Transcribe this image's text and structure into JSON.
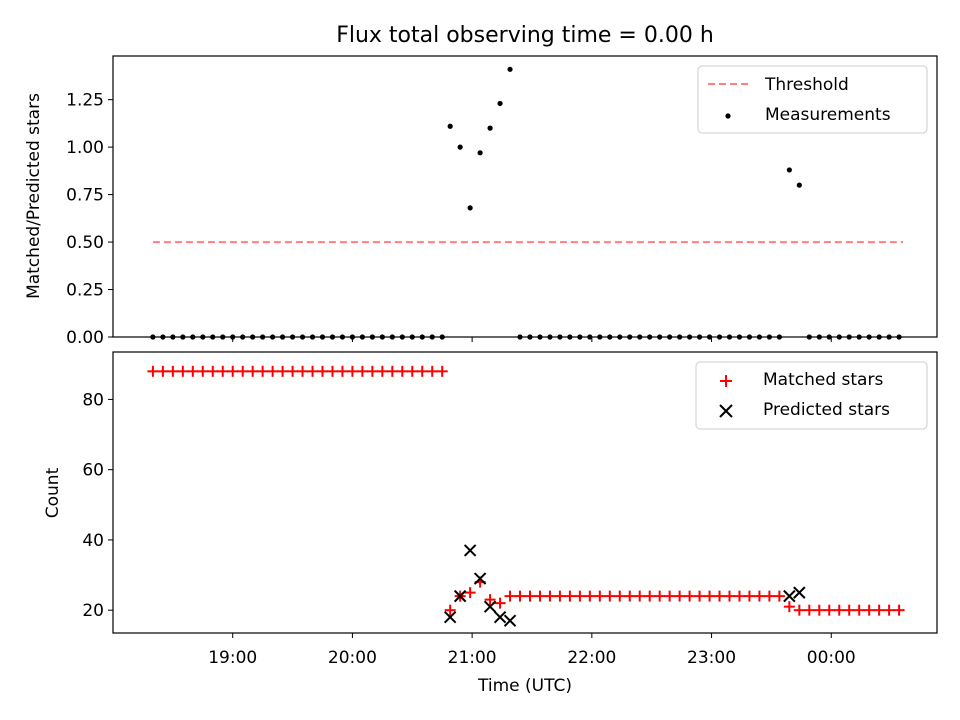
{
  "chart_data": [
    {
      "type": "scatter",
      "title": "Flux total observing time = 0.00 h",
      "xlabel": "",
      "ylabel": "Matched/Predicted stars",
      "ylim": [
        0,
        1.48
      ],
      "yticks": [
        "0.00",
        "0.25",
        "0.50",
        "0.75",
        "1.00",
        "1.25"
      ],
      "ytick_values": [
        0,
        0.25,
        0.5,
        0.75,
        1.0,
        1.25
      ],
      "legend_position": "top-right",
      "legend": [
        "Threshold",
        "Measurements"
      ],
      "threshold": {
        "name": "Threshold",
        "value": 0.5,
        "x_start": "18:20",
        "x_end": "00:36",
        "color": "#ff7f7f",
        "style": "dashed"
      },
      "series": [
        {
          "name": "Measurements",
          "marker": "dot",
          "color": "#000000",
          "points": [
            [
              "18:20",
              0
            ],
            [
              "18:25",
              0
            ],
            [
              "18:30",
              0
            ],
            [
              "18:35",
              0
            ],
            [
              "18:40",
              0
            ],
            [
              "18:45",
              0
            ],
            [
              "18:50",
              0
            ],
            [
              "18:55",
              0
            ],
            [
              "19:00",
              0
            ],
            [
              "19:05",
              0
            ],
            [
              "19:10",
              0
            ],
            [
              "19:15",
              0
            ],
            [
              "19:20",
              0
            ],
            [
              "19:25",
              0
            ],
            [
              "19:30",
              0
            ],
            [
              "19:35",
              0
            ],
            [
              "19:40",
              0
            ],
            [
              "19:45",
              0
            ],
            [
              "19:50",
              0
            ],
            [
              "19:55",
              0
            ],
            [
              "20:00",
              0
            ],
            [
              "20:05",
              0
            ],
            [
              "20:10",
              0
            ],
            [
              "20:15",
              0
            ],
            [
              "20:20",
              0
            ],
            [
              "20:25",
              0
            ],
            [
              "20:30",
              0
            ],
            [
              "20:35",
              0
            ],
            [
              "20:40",
              0
            ],
            [
              "20:45",
              0
            ],
            [
              "20:49",
              1.11
            ],
            [
              "20:54",
              1.0
            ],
            [
              "20:59",
              0.68
            ],
            [
              "21:04",
              0.97
            ],
            [
              "21:09",
              1.1
            ],
            [
              "21:14",
              1.23
            ],
            [
              "21:19",
              1.41
            ],
            [
              "21:24",
              0
            ],
            [
              "21:29",
              0
            ],
            [
              "21:34",
              0
            ],
            [
              "21:39",
              0
            ],
            [
              "21:44",
              0
            ],
            [
              "21:49",
              0
            ],
            [
              "21:54",
              0
            ],
            [
              "21:59",
              0
            ],
            [
              "22:04",
              0
            ],
            [
              "22:09",
              0
            ],
            [
              "22:14",
              0
            ],
            [
              "22:19",
              0
            ],
            [
              "22:24",
              0
            ],
            [
              "22:29",
              0
            ],
            [
              "22:34",
              0
            ],
            [
              "22:39",
              0
            ],
            [
              "22:44",
              0
            ],
            [
              "22:49",
              0
            ],
            [
              "22:54",
              0
            ],
            [
              "22:59",
              0
            ],
            [
              "23:04",
              0
            ],
            [
              "23:09",
              0
            ],
            [
              "23:14",
              0
            ],
            [
              "23:19",
              0
            ],
            [
              "23:24",
              0
            ],
            [
              "23:29",
              0
            ],
            [
              "23:34",
              0
            ],
            [
              "23:39",
              0.88
            ],
            [
              "23:44",
              0.8
            ],
            [
              "23:49",
              0
            ],
            [
              "23:54",
              0
            ],
            [
              "23:59",
              0
            ],
            [
              "00:04",
              0
            ],
            [
              "00:09",
              0
            ],
            [
              "00:14",
              0
            ],
            [
              "00:19",
              0
            ],
            [
              "00:24",
              0
            ],
            [
              "00:29",
              0
            ],
            [
              "00:34",
              0
            ]
          ]
        }
      ]
    },
    {
      "type": "scatter",
      "title": "",
      "xlabel": "Time (UTC)",
      "ylabel": "Count",
      "xlim": [
        "18:00",
        "00:53"
      ],
      "xticks": [
        "19:00",
        "20:00",
        "21:00",
        "22:00",
        "23:00",
        "00:00"
      ],
      "ylim": [
        13.5,
        93.5
      ],
      "yticks": [
        "20",
        "40",
        "60",
        "80"
      ],
      "ytick_values": [
        20,
        40,
        60,
        80
      ],
      "legend_position": "top-right",
      "legend": [
        "Matched stars",
        "Predicted stars"
      ],
      "series": [
        {
          "name": "Matched stars",
          "marker": "plus",
          "color": "#ff0000",
          "points": [
            [
              "18:20",
              88
            ],
            [
              "18:25",
              88
            ],
            [
              "18:30",
              88
            ],
            [
              "18:35",
              88
            ],
            [
              "18:40",
              88
            ],
            [
              "18:45",
              88
            ],
            [
              "18:50",
              88
            ],
            [
              "18:55",
              88
            ],
            [
              "19:00",
              88
            ],
            [
              "19:05",
              88
            ],
            [
              "19:10",
              88
            ],
            [
              "19:15",
              88
            ],
            [
              "19:20",
              88
            ],
            [
              "19:25",
              88
            ],
            [
              "19:30",
              88
            ],
            [
              "19:35",
              88
            ],
            [
              "19:40",
              88
            ],
            [
              "19:45",
              88
            ],
            [
              "19:50",
              88
            ],
            [
              "19:55",
              88
            ],
            [
              "20:00",
              88
            ],
            [
              "20:05",
              88
            ],
            [
              "20:10",
              88
            ],
            [
              "20:15",
              88
            ],
            [
              "20:20",
              88
            ],
            [
              "20:25",
              88
            ],
            [
              "20:30",
              88
            ],
            [
              "20:35",
              88
            ],
            [
              "20:40",
              88
            ],
            [
              "20:45",
              88
            ],
            [
              "20:49",
              20
            ],
            [
              "20:54",
              24
            ],
            [
              "20:59",
              25
            ],
            [
              "21:04",
              28
            ],
            [
              "21:09",
              23
            ],
            [
              "21:14",
              22
            ],
            [
              "21:19",
              24
            ],
            [
              "21:24",
              24
            ],
            [
              "21:29",
              24
            ],
            [
              "21:34",
              24
            ],
            [
              "21:39",
              24
            ],
            [
              "21:44",
              24
            ],
            [
              "21:49",
              24
            ],
            [
              "21:54",
              24
            ],
            [
              "21:59",
              24
            ],
            [
              "22:04",
              24
            ],
            [
              "22:09",
              24
            ],
            [
              "22:14",
              24
            ],
            [
              "22:19",
              24
            ],
            [
              "22:24",
              24
            ],
            [
              "22:29",
              24
            ],
            [
              "22:34",
              24
            ],
            [
              "22:39",
              24
            ],
            [
              "22:44",
              24
            ],
            [
              "22:49",
              24
            ],
            [
              "22:54",
              24
            ],
            [
              "22:59",
              24
            ],
            [
              "23:04",
              24
            ],
            [
              "23:09",
              24
            ],
            [
              "23:14",
              24
            ],
            [
              "23:19",
              24
            ],
            [
              "23:24",
              24
            ],
            [
              "23:29",
              24
            ],
            [
              "23:34",
              24
            ],
            [
              "23:39",
              21
            ],
            [
              "23:44",
              20
            ],
            [
              "23:49",
              20
            ],
            [
              "23:54",
              20
            ],
            [
              "23:59",
              20
            ],
            [
              "00:04",
              20
            ],
            [
              "00:09",
              20
            ],
            [
              "00:14",
              20
            ],
            [
              "00:19",
              20
            ],
            [
              "00:24",
              20
            ],
            [
              "00:29",
              20
            ],
            [
              "00:34",
              20
            ]
          ]
        },
        {
          "name": "Predicted stars",
          "marker": "x",
          "color": "#000000",
          "points": [
            [
              "20:49",
              18
            ],
            [
              "20:54",
              24
            ],
            [
              "20:59",
              37
            ],
            [
              "21:04",
              29
            ],
            [
              "21:09",
              21
            ],
            [
              "21:14",
              18
            ],
            [
              "21:19",
              17
            ],
            [
              "23:39",
              24
            ],
            [
              "23:44",
              25
            ]
          ]
        }
      ]
    }
  ]
}
